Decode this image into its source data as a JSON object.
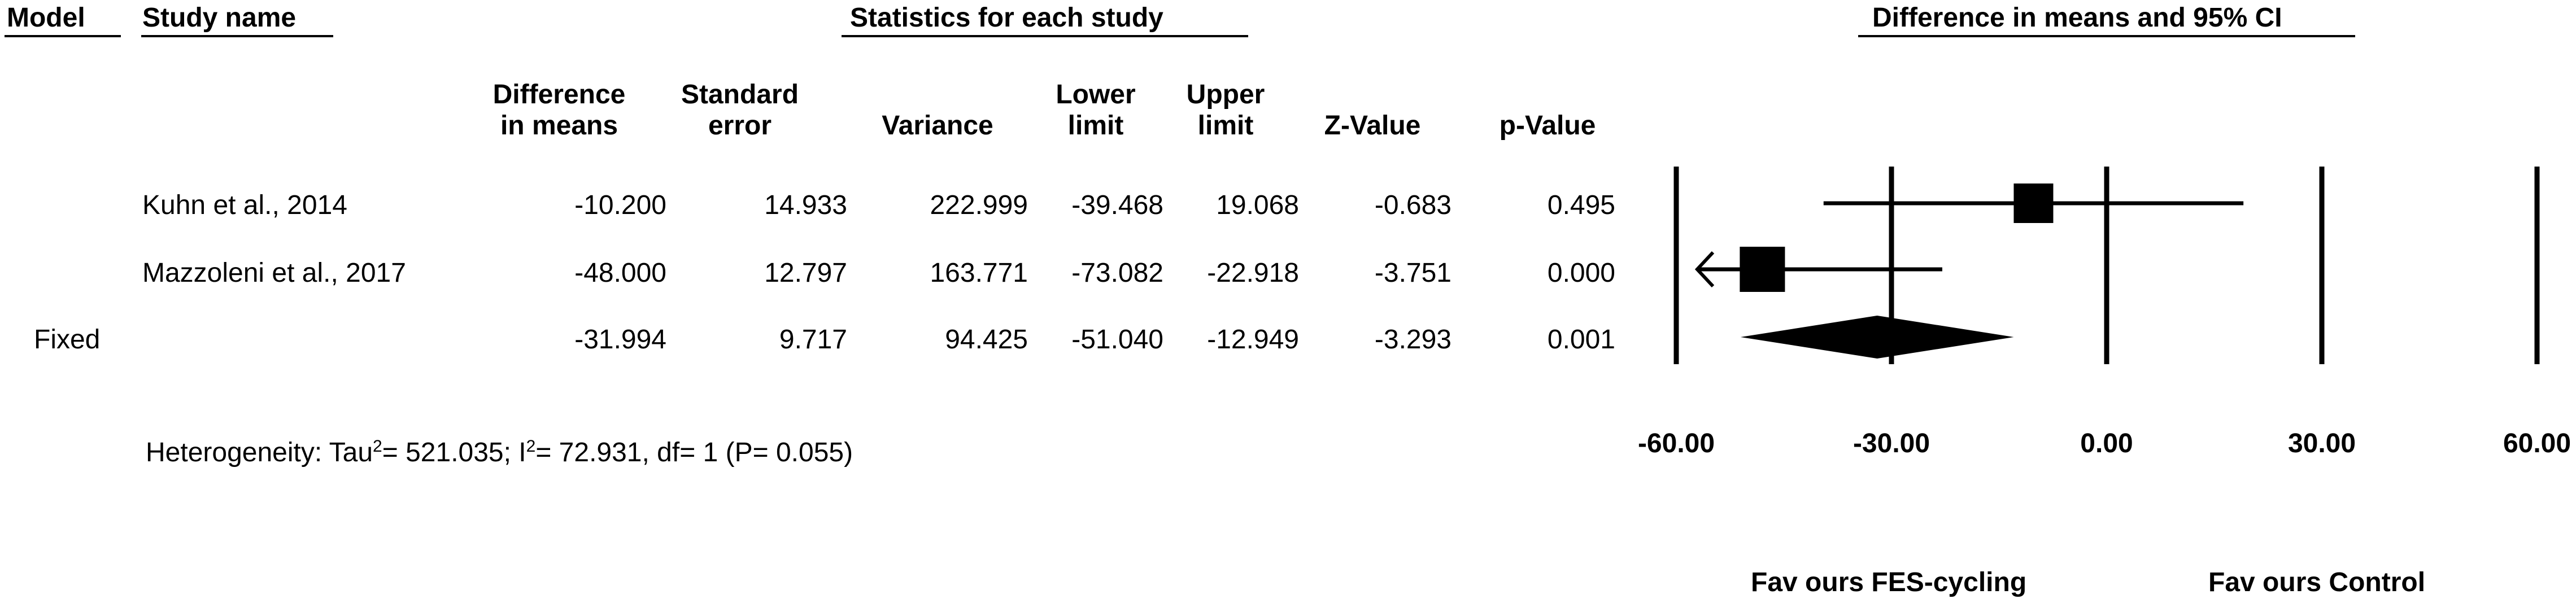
{
  "headers": {
    "model": "Model",
    "study_name": "Study name",
    "statistics": "Statistics for each study",
    "forest": "Difference in means and 95% CI"
  },
  "columns": [
    {
      "line1": "Difference",
      "line2": "in means"
    },
    {
      "line1": "Standard",
      "line2": "error"
    },
    {
      "line1": "",
      "line2": "Variance"
    },
    {
      "line1": "Lower",
      "line2": "limit"
    },
    {
      "line1": "Upper",
      "line2": "limit"
    },
    {
      "line1": "",
      "line2": "Z-Value"
    },
    {
      "line1": "",
      "line2": "p-Value"
    }
  ],
  "rows": [
    {
      "model": "",
      "study": "Kuhn et al., 2014",
      "diff": "-10.200",
      "se": "14.933",
      "variance": "222.999",
      "lower": "-39.468",
      "upper": "19.068",
      "z": "-0.683",
      "p": "0.495"
    },
    {
      "model": "",
      "study": "Mazzoleni et al., 2017",
      "diff": "-48.000",
      "se": "12.797",
      "variance": "163.771",
      "lower": "-73.082",
      "upper": "-22.918",
      "z": "-3.751",
      "p": "0.000"
    },
    {
      "model": "Fixed",
      "study": "",
      "diff": "-31.994",
      "se": "9.717",
      "variance": "94.425",
      "lower": "-51.040",
      "upper": "-12.949",
      "z": "-3.293",
      "p": "0.001"
    }
  ],
  "heterogeneity": {
    "prefix": "Heterogeneity: Tau",
    "tau_sup": "2",
    "mid": "= 521.035; I",
    "i_sup": "2",
    "suffix": "= 72.931, df= 1 (P= 0.055)"
  },
  "chart_data": {
    "type": "forest",
    "axis_ticks": [
      -60,
      -30,
      0,
      30,
      60
    ],
    "axis_tick_labels": [
      "-60.00",
      "-30.00",
      "0.00",
      "30.00",
      "60.00"
    ],
    "xlim": [
      -60,
      60
    ],
    "studies": [
      {
        "name": "Kuhn et al., 2014",
        "estimate": -10.2,
        "lower": -39.468,
        "upper": 19.068,
        "weight_se": 14.933
      },
      {
        "name": "Mazzoleni et al., 2017",
        "estimate": -48.0,
        "lower": -73.082,
        "upper": -22.918,
        "weight_se": 12.797
      }
    ],
    "pooled": {
      "name": "Fixed",
      "estimate": -31.994,
      "lower": -51.04,
      "upper": -12.949
    },
    "favours_left": "Fav ours FES-cycling",
    "favours_right": "Fav ours Control",
    "colors": {
      "marks": "#000000"
    }
  }
}
